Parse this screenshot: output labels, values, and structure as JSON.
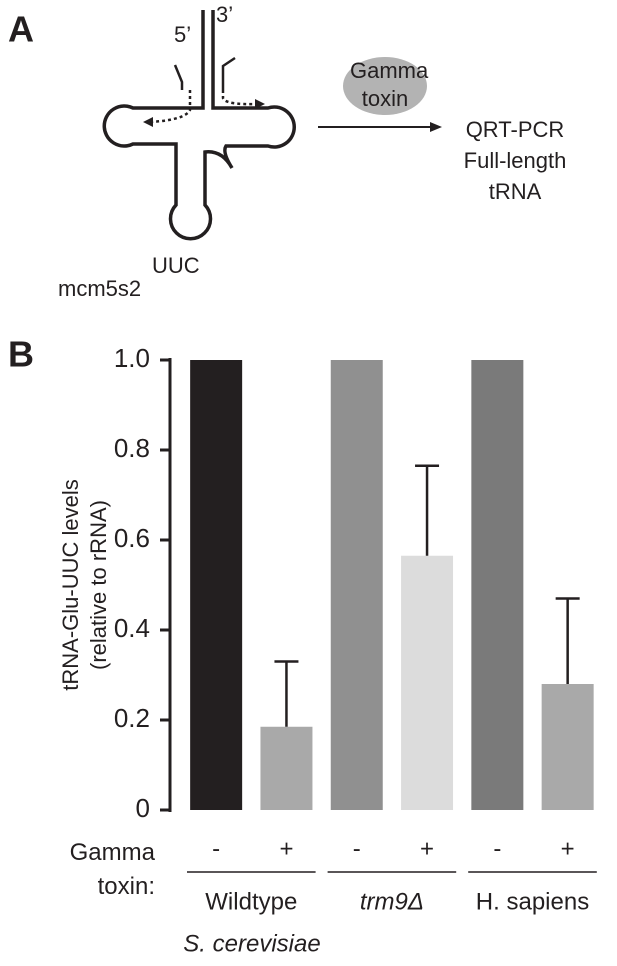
{
  "panels": {
    "a": "A",
    "b": "B"
  },
  "diagram": {
    "five_prime": "5’",
    "three_prime": "3’",
    "enzyme": "Gamma toxin",
    "assay": [
      "QRT-PCR",
      "Full-length",
      "tRNA"
    ],
    "modification": "mcm5s2",
    "anticodon": "UUC"
  },
  "chart_data": {
    "type": "bar",
    "ylabel": [
      "tRNA-Glu-UUC levels",
      "(relative to rRNA)"
    ],
    "row_label": "Gamma toxin:",
    "categories": [
      "-",
      "+",
      "-",
      "+",
      "-",
      "+"
    ],
    "values": [
      1,
      0.185,
      1,
      0.565,
      1,
      0.28
    ],
    "errors": [
      null,
      0.145,
      null,
      0.2,
      null,
      0.19
    ],
    "colors": [
      "#231f20",
      "#a9a9a9",
      "#909090",
      "#dcdcdc",
      "#7a7a7a",
      "#a9a9a9"
    ],
    "groups": [
      "Wildtype",
      "trm9Δ",
      "H. sapiens"
    ],
    "supergroup": "S. cerevisiae",
    "ylim": [
      0,
      1
    ],
    "yticks": [
      0,
      0.2,
      0.4,
      0.6,
      0.8,
      {
        "value": 1,
        "label": "1.0"
      }
    ],
    "grid": false
  }
}
